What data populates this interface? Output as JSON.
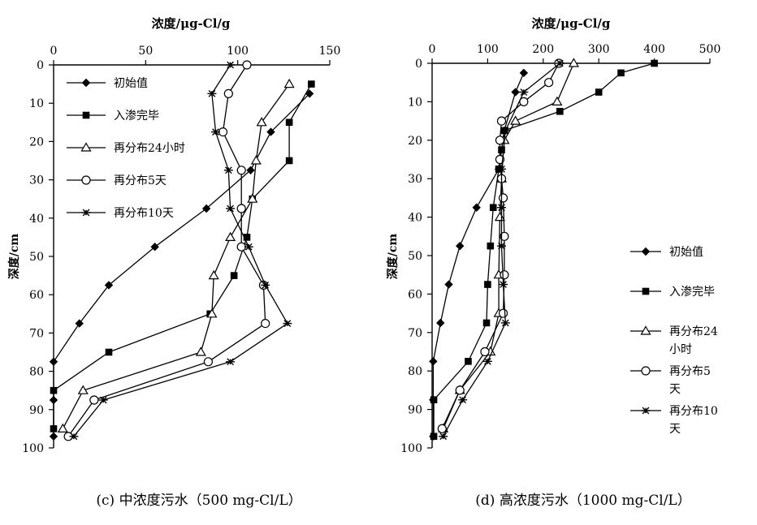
{
  "chart_data": [
    {
      "type": "line",
      "x_axis_position": "top",
      "xlabel": "浓度/μg-Cl/g",
      "ylabel": "深度/cm",
      "xlim": [
        0,
        150
      ],
      "ylim": [
        0,
        100
      ],
      "y_inverted": true,
      "xticks": [
        "0",
        "50",
        "100",
        "150"
      ],
      "yticks": [
        "0",
        "10",
        "20",
        "30",
        "40",
        "50",
        "60",
        "70",
        "80",
        "90",
        "100"
      ],
      "grid": false,
      "legend_position": "upper-left",
      "caption": "(c)  中浓度污水（500 mg-Cl/L）",
      "series": [
        {
          "name": "初始值",
          "marker": "diamond",
          "points": [
            [
              139,
              7.5
            ],
            [
              118,
              17.5
            ],
            [
              107,
              27.5
            ],
            [
              83,
              37.5
            ],
            [
              55,
              47.5
            ],
            [
              30,
              57.5
            ],
            [
              14,
              67.5
            ],
            [
              0,
              77.5
            ],
            [
              0,
              87.5
            ],
            [
              0,
              97
            ]
          ]
        },
        {
          "name": "入渗完毕",
          "marker": "square",
          "points": [
            [
              140,
              5
            ],
            [
              128,
              15
            ],
            [
              128,
              25
            ],
            [
              108,
              35
            ],
            [
              105,
              45
            ],
            [
              98,
              55
            ],
            [
              85,
              65
            ],
            [
              30,
              75
            ],
            [
              0,
              85
            ],
            [
              0,
              95
            ]
          ]
        },
        {
          "name": "再分布24小时",
          "marker": "triangle",
          "points": [
            [
              128,
              5
            ],
            [
              113,
              15
            ],
            [
              110,
              25
            ],
            [
              108,
              35
            ],
            [
              96,
              45
            ],
            [
              87,
              55
            ],
            [
              86,
              65
            ],
            [
              80,
              75
            ],
            [
              16,
              85
            ],
            [
              5,
              95
            ]
          ]
        },
        {
          "name": "再分布5天",
          "marker": "circle",
          "points": [
            [
              105,
              0
            ],
            [
              95,
              7.5
            ],
            [
              92,
              17.5
            ],
            [
              102,
              27.5
            ],
            [
              102,
              37.5
            ],
            [
              102,
              47.5
            ],
            [
              114,
              57.5
            ],
            [
              115,
              67.5
            ],
            [
              84,
              77.5
            ],
            [
              22,
              87.5
            ],
            [
              8,
              97
            ]
          ]
        },
        {
          "name": "再分布10天",
          "marker": "asterisk",
          "points": [
            [
              96,
              0
            ],
            [
              86,
              7.5
            ],
            [
              88,
              17.5
            ],
            [
              95,
              27.5
            ],
            [
              96,
              37.5
            ],
            [
              106,
              47.5
            ],
            [
              115,
              57.5
            ],
            [
              127,
              67.5
            ],
            [
              96,
              77.5
            ],
            [
              27,
              87.5
            ],
            [
              11,
              97
            ]
          ]
        }
      ]
    },
    {
      "type": "line",
      "x_axis_position": "top",
      "xlabel": "浓度/μg-Cl/g",
      "ylabel": "深度/cm",
      "xlim": [
        0,
        500
      ],
      "ylim": [
        0,
        100
      ],
      "y_inverted": true,
      "xticks": [
        "0",
        "100",
        "200",
        "300",
        "400",
        "500"
      ],
      "yticks": [
        "0",
        "10",
        "20",
        "30",
        "40",
        "50",
        "60",
        "70",
        "80",
        "90",
        "100"
      ],
      "grid": false,
      "legend_position": "right",
      "caption": "(d)  高浓度污水（1000 mg-Cl/L）",
      "series": [
        {
          "name": "初始值",
          "marker": "diamond",
          "points": [
            [
              165,
              2.5
            ],
            [
              150,
              7.5
            ],
            [
              130,
              17.5
            ],
            [
              120,
              27.5
            ],
            [
              80,
              37.5
            ],
            [
              50,
              47.5
            ],
            [
              30,
              57.5
            ],
            [
              15,
              67.5
            ],
            [
              2,
              77.5
            ],
            [
              2,
              87.5
            ],
            [
              2,
              97
            ]
          ]
        },
        {
          "name": "入渗完毕",
          "marker": "square",
          "points": [
            [
              400,
              0
            ],
            [
              340,
              2.5
            ],
            [
              300,
              7.5
            ],
            [
              230,
              12.5
            ],
            [
              130,
              17.5
            ],
            [
              125,
              22.5
            ],
            [
              120,
              27.5
            ],
            [
              110,
              37.5
            ],
            [
              105,
              47.5
            ],
            [
              100,
              57.5
            ],
            [
              98,
              67.5
            ],
            [
              65,
              77.5
            ],
            [
              3,
              87.5
            ],
            [
              3,
              97
            ]
          ]
        },
        {
          "name": "再分布24\n小时",
          "marker": "triangle",
          "points": [
            [
              255,
              0
            ],
            [
              225,
              10
            ],
            [
              150,
              15
            ],
            [
              130,
              20
            ],
            [
              125,
              30
            ],
            [
              122,
              40
            ],
            [
              120,
              55
            ],
            [
              120,
              65
            ],
            [
              105,
              75
            ],
            [
              50,
              85
            ],
            [
              20,
              95
            ]
          ]
        },
        {
          "name": "再分布5\n天",
          "marker": "circle",
          "points": [
            [
              228,
              0
            ],
            [
              210,
              5
            ],
            [
              165,
              10
            ],
            [
              125,
              15
            ],
            [
              122,
              20
            ],
            [
              122,
              25
            ],
            [
              125,
              30
            ],
            [
              128,
              35
            ],
            [
              130,
              45
            ],
            [
              130,
              55
            ],
            [
              128,
              65
            ],
            [
              95,
              75
            ],
            [
              50,
              85
            ],
            [
              18,
              95
            ]
          ]
        },
        {
          "name": "再分布10\n天",
          "marker": "asterisk",
          "points": [
            [
              230,
              0
            ],
            [
              165,
              7.5
            ],
            [
              132,
              17.5
            ],
            [
              125,
              27.5
            ],
            [
              125,
              37.5
            ],
            [
              125,
              47.5
            ],
            [
              128,
              57.5
            ],
            [
              132,
              67.5
            ],
            [
              100,
              77.5
            ],
            [
              55,
              87.5
            ],
            [
              20,
              97
            ]
          ]
        }
      ]
    }
  ]
}
